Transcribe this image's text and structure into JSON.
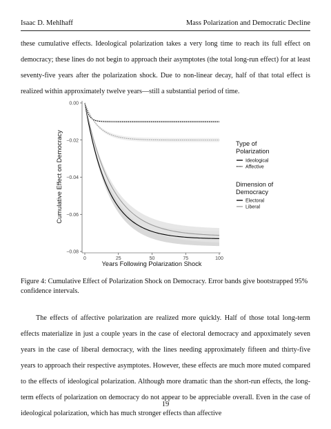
{
  "header": {
    "author": "Isaac D. Mehlhaff",
    "running_title": "Mass Polarization and Democratic Decline"
  },
  "paragraph_top": "these cumulative effects. Ideological polarization takes a very long time to reach its full effect on democracy; these lines do not begin to approach their asymptotes (the total long-run effect) for at least seventy-five years after the polarization shock. Due to non-linear decay, half of that total effect is realized within approximately twelve years—still a substantial period of time.",
  "chart_data": {
    "type": "line",
    "xlabel": "Years Following Polarization Shock",
    "ylabel": "Cumulative Effect on Democracy",
    "xlim": [
      0,
      100
    ],
    "ylim": [
      -0.08,
      0
    ],
    "x_ticks": [
      "0",
      "25",
      "50",
      "75",
      "100"
    ],
    "y_ticks": [
      "0.00",
      "−0.02",
      "−0.04",
      "−0.06",
      "−0.08"
    ],
    "grid": false,
    "legend_placement": "right",
    "legend": {
      "type_title_line1": "Type of",
      "type_title_line2": "Polarization",
      "type_items": [
        "Ideological",
        "Affective"
      ],
      "dimension_title_line1": "Dimension of",
      "dimension_title_line2": "Democracy",
      "dimension_items": [
        "Electoral",
        "Liberal"
      ]
    },
    "series": [
      {
        "name": "Ideological · Electoral",
        "type": "Ideological",
        "dimension": "Electoral",
        "asymptote": -0.0733,
        "half_life": 12,
        "color": "#000000",
        "band_color": "#d2d2d2"
      },
      {
        "name": "Ideological · Liberal",
        "type": "Ideological",
        "dimension": "Liberal",
        "asymptote": -0.0718,
        "half_life": 14,
        "color": "#9a9a9a",
        "band_color": "#e3e3e3"
      },
      {
        "name": "Affective · Electoral",
        "type": "Affective",
        "dimension": "Electoral",
        "asymptote": -0.0101,
        "half_life": 2,
        "color": "#000000",
        "band_color": "#e6e6e6"
      },
      {
        "name": "Affective · Liberal",
        "type": "Affective",
        "dimension": "Liberal",
        "asymptote": -0.02,
        "half_life": 7,
        "color": "#9a9a9a",
        "band_color": "#ececec"
      }
    ]
  },
  "caption": "Figure 4: Cumulative Effect of Polarization Shock on Democracy. Error bands give bootstrapped 95% confidence intervals.",
  "paragraph_bottom": "The effects of affective polarization are realized more quickly. Half of those total long-term effects materialize in just a couple years in the case of electoral democracy and appoximately seven years in the case of liberal democracy, with the lines needing approximately fifteen and thirty-five years to approach their respective asymptotes. However, these effects are much more muted compared to the effects of ideological polarization. Although more dramatic than the short-run effects, the long-term effects of polarization on democracy do not appear to be appreciable overall. Even in the case of ideological polarization, which has much stronger effects than affective",
  "page_number": "19"
}
